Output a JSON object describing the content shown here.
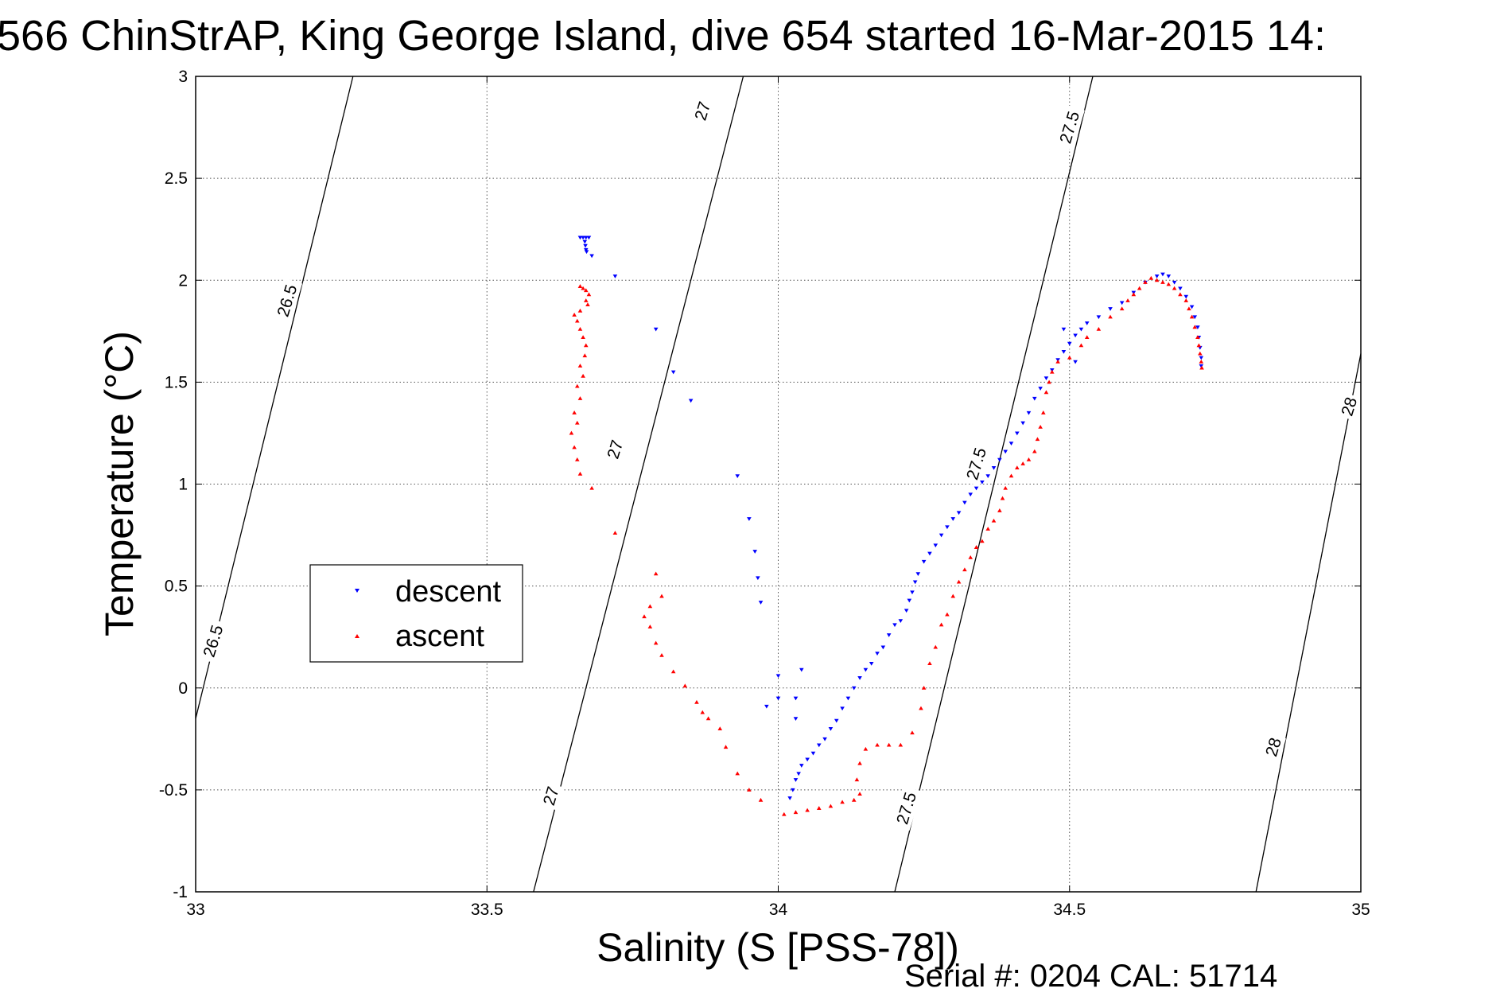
{
  "chart_data": {
    "type": "scatter",
    "title": "566 ChinStrAP, King George Island, dive 654 started 16-Mar-2015 14:",
    "xlabel": "Salinity (S [PSS-78])",
    "ylabel": "Temperature (°C)",
    "xlim": [
      33,
      35
    ],
    "ylim": [
      -1,
      3
    ],
    "xticks": [
      "33",
      "33.5",
      "34",
      "34.5",
      "35"
    ],
    "yticks": [
      "-1",
      "-0.5",
      "0",
      "0.5",
      "1",
      "1.5",
      "2",
      "2.5",
      "3"
    ],
    "grid": true,
    "legend": {
      "placement": "left-middle",
      "entries": [
        "descent",
        "ascent"
      ]
    },
    "colors": {
      "descent": "#0000ff",
      "ascent": "#ff0000",
      "contour": "#000000"
    },
    "footer": "Serial #: 0204  CAL: 51714",
    "contours": [
      {
        "level": "26.5",
        "points": [
          [
            33.0,
            -0.15
          ],
          [
            33.27,
            3.0
          ]
        ]
      },
      {
        "level": "27",
        "points": [
          [
            33.58,
            -1.0
          ],
          [
            33.94,
            3.0
          ]
        ]
      },
      {
        "level": "27.5",
        "points": [
          [
            34.2,
            -1.0
          ],
          [
            34.54,
            3.0
          ]
        ]
      },
      {
        "level": "28",
        "points": [
          [
            34.82,
            -1.0
          ],
          [
            35.0,
            1.64
          ]
        ]
      }
    ],
    "contour_labels": [
      {
        "text": "26.5",
        "x": 33.157,
        "y": 1.9,
        "angle": -73
      },
      {
        "text": "26.5",
        "x": 33.03,
        "y": 0.23,
        "angle": -73
      },
      {
        "text": "27",
        "x": 33.87,
        "y": 2.83,
        "angle": -73
      },
      {
        "text": "27",
        "x": 33.72,
        "y": 1.17,
        "angle": -73
      },
      {
        "text": "27",
        "x": 33.61,
        "y": -0.53,
        "angle": -73
      },
      {
        "text": "27.5",
        "x": 34.5,
        "y": 2.75,
        "angle": -73
      },
      {
        "text": "27.5",
        "x": 34.34,
        "y": 1.1,
        "angle": -73
      },
      {
        "text": "27.5",
        "x": 34.22,
        "y": -0.59,
        "angle": -73
      },
      {
        "text": "28",
        "x": 34.98,
        "y": 1.38,
        "angle": -73
      },
      {
        "text": "28",
        "x": 34.85,
        "y": -0.29,
        "angle": -73
      }
    ],
    "series": [
      {
        "name": "descent",
        "marker": "triangle-down",
        "points": [
          [
            33.66,
            2.21
          ],
          [
            33.665,
            2.21
          ],
          [
            33.67,
            2.21
          ],
          [
            33.675,
            2.21
          ],
          [
            33.668,
            2.19
          ],
          [
            33.669,
            2.17
          ],
          [
            33.67,
            2.15
          ],
          [
            33.671,
            2.14
          ],
          [
            33.68,
            2.12
          ],
          [
            33.72,
            2.02
          ],
          [
            33.79,
            1.76
          ],
          [
            33.82,
            1.55
          ],
          [
            33.85,
            1.41
          ],
          [
            33.93,
            1.04
          ],
          [
            33.95,
            0.83
          ],
          [
            33.96,
            0.67
          ],
          [
            33.965,
            0.54
          ],
          [
            33.97,
            0.42
          ],
          [
            34.0,
            0.06
          ],
          [
            33.98,
            -0.09
          ],
          [
            34.0,
            -0.05
          ],
          [
            34.04,
            0.09
          ],
          [
            34.03,
            -0.05
          ],
          [
            34.03,
            -0.15
          ],
          [
            34.02,
            -0.54
          ],
          [
            34.025,
            -0.5
          ],
          [
            34.03,
            -0.45
          ],
          [
            34.035,
            -0.42
          ],
          [
            34.04,
            -0.38
          ],
          [
            34.05,
            -0.35
          ],
          [
            34.06,
            -0.32
          ],
          [
            34.07,
            -0.28
          ],
          [
            34.08,
            -0.25
          ],
          [
            34.09,
            -0.2
          ],
          [
            34.1,
            -0.16
          ],
          [
            34.11,
            -0.1
          ],
          [
            34.12,
            -0.05
          ],
          [
            34.13,
            0.0
          ],
          [
            34.14,
            0.05
          ],
          [
            34.15,
            0.09
          ],
          [
            34.16,
            0.12
          ],
          [
            34.17,
            0.17
          ],
          [
            34.18,
            0.2
          ],
          [
            34.19,
            0.26
          ],
          [
            34.2,
            0.31
          ],
          [
            34.21,
            0.33
          ],
          [
            34.22,
            0.38
          ],
          [
            34.225,
            0.43
          ],
          [
            34.23,
            0.47
          ],
          [
            34.235,
            0.52
          ],
          [
            34.24,
            0.56
          ],
          [
            34.25,
            0.62
          ],
          [
            34.26,
            0.66
          ],
          [
            34.27,
            0.7
          ],
          [
            34.28,
            0.75
          ],
          [
            34.29,
            0.79
          ],
          [
            34.3,
            0.83
          ],
          [
            34.31,
            0.86
          ],
          [
            34.32,
            0.91
          ],
          [
            34.33,
            0.95
          ],
          [
            34.34,
            0.98
          ],
          [
            34.35,
            1.01
          ],
          [
            34.36,
            1.04
          ],
          [
            34.37,
            1.08
          ],
          [
            34.38,
            1.12
          ],
          [
            34.39,
            1.16
          ],
          [
            34.4,
            1.2
          ],
          [
            34.41,
            1.25
          ],
          [
            34.42,
            1.3
          ],
          [
            34.43,
            1.35
          ],
          [
            34.44,
            1.42
          ],
          [
            34.45,
            1.47
          ],
          [
            34.46,
            1.52
          ],
          [
            34.47,
            1.56
          ],
          [
            34.48,
            1.61
          ],
          [
            34.49,
            1.65
          ],
          [
            34.5,
            1.69
          ],
          [
            34.51,
            1.73
          ],
          [
            34.52,
            1.76
          ],
          [
            34.49,
            1.76
          ],
          [
            34.51,
            1.6
          ],
          [
            34.53,
            1.79
          ],
          [
            34.55,
            1.82
          ],
          [
            34.57,
            1.86
          ],
          [
            34.59,
            1.89
          ],
          [
            34.61,
            1.94
          ],
          [
            34.63,
            1.99
          ],
          [
            34.65,
            2.02
          ],
          [
            34.66,
            2.03
          ],
          [
            34.67,
            2.02
          ],
          [
            34.68,
            1.99
          ],
          [
            34.69,
            1.96
          ],
          [
            34.7,
            1.92
          ],
          [
            34.71,
            1.87
          ],
          [
            34.715,
            1.82
          ],
          [
            34.72,
            1.77
          ],
          [
            34.722,
            1.72
          ],
          [
            34.724,
            1.67
          ],
          [
            34.726,
            1.62
          ],
          [
            34.726,
            1.58
          ]
        ]
      },
      {
        "name": "ascent",
        "marker": "triangle-up",
        "points": [
          [
            33.66,
            1.97
          ],
          [
            33.665,
            1.96
          ],
          [
            33.67,
            1.95
          ],
          [
            33.675,
            1.93
          ],
          [
            33.67,
            1.9
          ],
          [
            33.673,
            1.88
          ],
          [
            33.66,
            1.85
          ],
          [
            33.65,
            1.83
          ],
          [
            33.655,
            1.8
          ],
          [
            33.66,
            1.76
          ],
          [
            33.665,
            1.72
          ],
          [
            33.67,
            1.68
          ],
          [
            33.668,
            1.63
          ],
          [
            33.66,
            1.58
          ],
          [
            33.665,
            1.53
          ],
          [
            33.655,
            1.48
          ],
          [
            33.66,
            1.42
          ],
          [
            33.65,
            1.35
          ],
          [
            33.655,
            1.3
          ],
          [
            33.645,
            1.25
          ],
          [
            33.65,
            1.18
          ],
          [
            33.655,
            1.12
          ],
          [
            33.66,
            1.05
          ],
          [
            33.68,
            0.98
          ],
          [
            33.72,
            0.76
          ],
          [
            33.79,
            0.56
          ],
          [
            33.8,
            0.45
          ],
          [
            33.78,
            0.4
          ],
          [
            33.77,
            0.35
          ],
          [
            33.78,
            0.3
          ],
          [
            33.79,
            0.22
          ],
          [
            33.8,
            0.16
          ],
          [
            33.82,
            0.08
          ],
          [
            33.84,
            0.01
          ],
          [
            33.86,
            -0.07
          ],
          [
            33.87,
            -0.12
          ],
          [
            33.88,
            -0.15
          ],
          [
            33.9,
            -0.2
          ],
          [
            33.91,
            -0.29
          ],
          [
            33.93,
            -0.42
          ],
          [
            33.95,
            -0.5
          ],
          [
            33.97,
            -0.55
          ],
          [
            34.01,
            -0.62
          ],
          [
            34.03,
            -0.61
          ],
          [
            34.05,
            -0.6
          ],
          [
            34.07,
            -0.59
          ],
          [
            34.09,
            -0.58
          ],
          [
            34.11,
            -0.56
          ],
          [
            34.13,
            -0.55
          ],
          [
            34.14,
            -0.52
          ],
          [
            34.135,
            -0.45
          ],
          [
            34.14,
            -0.37
          ],
          [
            34.15,
            -0.3
          ],
          [
            34.17,
            -0.28
          ],
          [
            34.19,
            -0.28
          ],
          [
            34.21,
            -0.28
          ],
          [
            34.23,
            -0.22
          ],
          [
            34.245,
            -0.1
          ],
          [
            34.25,
            0.0
          ],
          [
            34.26,
            0.12
          ],
          [
            34.27,
            0.2
          ],
          [
            34.28,
            0.31
          ],
          [
            34.29,
            0.36
          ],
          [
            34.3,
            0.45
          ],
          [
            34.31,
            0.52
          ],
          [
            34.32,
            0.58
          ],
          [
            34.33,
            0.64
          ],
          [
            34.34,
            0.69
          ],
          [
            34.35,
            0.72
          ],
          [
            34.36,
            0.78
          ],
          [
            34.37,
            0.82
          ],
          [
            34.38,
            0.87
          ],
          [
            34.385,
            0.93
          ],
          [
            34.39,
            0.98
          ],
          [
            34.4,
            1.04
          ],
          [
            34.41,
            1.08
          ],
          [
            34.42,
            1.1
          ],
          [
            34.43,
            1.12
          ],
          [
            34.44,
            1.16
          ],
          [
            34.445,
            1.22
          ],
          [
            34.45,
            1.28
          ],
          [
            34.455,
            1.35
          ],
          [
            34.46,
            1.45
          ],
          [
            34.465,
            1.5
          ],
          [
            34.47,
            1.55
          ],
          [
            34.48,
            1.6
          ],
          [
            34.5,
            1.62
          ],
          [
            34.52,
            1.68
          ],
          [
            34.53,
            1.72
          ],
          [
            34.55,
            1.76
          ],
          [
            34.57,
            1.82
          ],
          [
            34.59,
            1.86
          ],
          [
            34.6,
            1.9
          ],
          [
            34.61,
            1.93
          ],
          [
            34.62,
            1.96
          ],
          [
            34.63,
            1.99
          ],
          [
            34.64,
            2.01
          ],
          [
            34.65,
            2.0
          ],
          [
            34.66,
            1.99
          ],
          [
            34.67,
            1.98
          ],
          [
            34.68,
            1.96
          ],
          [
            34.69,
            1.93
          ],
          [
            34.7,
            1.9
          ],
          [
            34.705,
            1.86
          ],
          [
            34.71,
            1.82
          ],
          [
            34.715,
            1.77
          ],
          [
            34.72,
            1.72
          ],
          [
            34.722,
            1.68
          ],
          [
            34.724,
            1.64
          ],
          [
            34.726,
            1.6
          ],
          [
            34.727,
            1.57
          ]
        ]
      }
    ]
  }
}
